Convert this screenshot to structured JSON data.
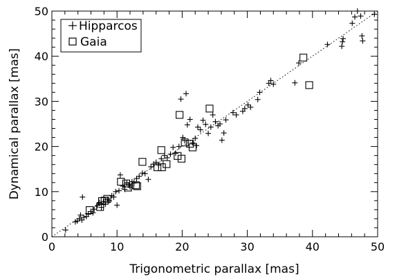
{
  "chart_data": {
    "type": "scatter",
    "title": "",
    "xlabel": "Trigonometric parallax [mas]",
    "ylabel": "Dynamical parallax [mas]",
    "xlim": [
      0,
      50
    ],
    "ylim": [
      0,
      50
    ],
    "x_ticks": [
      "0",
      "10",
      "20",
      "30",
      "40",
      "50"
    ],
    "y_ticks": [
      "0",
      "10",
      "20",
      "30",
      "40",
      "50"
    ],
    "grid": false,
    "legend_position": "top-left",
    "reference_line": {
      "style": "dotted",
      "slope": 1,
      "intercept": 0
    },
    "series": [
      {
        "name": "Hipparcos",
        "marker": "plus",
        "points": [
          [
            2.1,
            1.5
          ],
          [
            3.6,
            3.3
          ],
          [
            3.9,
            3.5
          ],
          [
            4.2,
            4.0
          ],
          [
            4.4,
            4.8
          ],
          [
            4.6,
            3.7
          ],
          [
            4.9,
            4.3
          ],
          [
            4.7,
            8.8
          ],
          [
            5.3,
            4.5
          ],
          [
            5.6,
            5.0
          ],
          [
            6.0,
            5.6
          ],
          [
            6.3,
            5.3
          ],
          [
            6.5,
            6.1
          ],
          [
            7.0,
            6.9
          ],
          [
            7.3,
            7.6
          ],
          [
            7.6,
            6.5
          ],
          [
            7.9,
            7.8
          ],
          [
            8.2,
            7.2
          ],
          [
            8.5,
            8.3
          ],
          [
            8.8,
            8.0
          ],
          [
            9.2,
            9.1
          ],
          [
            9.5,
            8.8
          ],
          [
            9.8,
            10.0
          ],
          [
            10.0,
            7.0
          ],
          [
            10.3,
            10.2
          ],
          [
            10.5,
            13.7
          ],
          [
            10.9,
            11.2
          ],
          [
            11.2,
            10.5
          ],
          [
            11.5,
            12.0
          ],
          [
            11.8,
            11.4
          ],
          [
            12.0,
            11.0
          ],
          [
            12.3,
            12.2
          ],
          [
            12.6,
            11.9
          ],
          [
            13.0,
            12.9
          ],
          [
            13.4,
            13.4
          ],
          [
            13.9,
            14.1
          ],
          [
            14.3,
            14.0
          ],
          [
            14.8,
            12.7
          ],
          [
            15.2,
            15.5
          ],
          [
            15.6,
            16.1
          ],
          [
            16.0,
            16.5
          ],
          [
            16.4,
            15.9
          ],
          [
            16.8,
            17.3
          ],
          [
            17.3,
            18.0
          ],
          [
            17.7,
            17.5
          ],
          [
            18.2,
            18.3
          ],
          [
            18.6,
            19.8
          ],
          [
            19.0,
            18.5
          ],
          [
            19.5,
            20.0
          ],
          [
            19.8,
            30.5
          ],
          [
            20.1,
            22.0
          ],
          [
            20.4,
            21.3
          ],
          [
            20.6,
            31.7
          ],
          [
            20.8,
            24.8
          ],
          [
            21.2,
            26.0
          ],
          [
            21.6,
            20.8
          ],
          [
            22.0,
            21.8
          ],
          [
            22.2,
            20.2
          ],
          [
            22.4,
            24.3
          ],
          [
            22.8,
            23.7
          ],
          [
            23.2,
            25.8
          ],
          [
            23.6,
            24.9
          ],
          [
            24.0,
            22.9
          ],
          [
            24.4,
            24.3
          ],
          [
            24.7,
            27.0
          ],
          [
            25.1,
            25.5
          ],
          [
            25.5,
            24.6
          ],
          [
            25.8,
            25.0
          ],
          [
            26.1,
            21.4
          ],
          [
            26.4,
            23.0
          ],
          [
            26.7,
            25.9
          ],
          [
            27.8,
            27.5
          ],
          [
            28.3,
            27.0
          ],
          [
            29.3,
            27.8
          ],
          [
            29.6,
            28.4
          ],
          [
            30.1,
            29.2
          ],
          [
            30.5,
            28.7
          ],
          [
            31.6,
            30.4
          ],
          [
            31.9,
            32.0
          ],
          [
            33.3,
            34.0
          ],
          [
            33.6,
            34.6
          ],
          [
            34.0,
            33.8
          ],
          [
            37.3,
            34.1
          ],
          [
            37.9,
            38.5
          ],
          [
            42.3,
            42.6
          ],
          [
            44.5,
            42.2
          ],
          [
            44.6,
            43.2
          ],
          [
            44.7,
            43.9
          ],
          [
            46.1,
            47.3
          ],
          [
            46.5,
            48.7
          ],
          [
            46.9,
            50.0
          ],
          [
            47.4,
            48.9
          ],
          [
            47.6,
            44.5
          ],
          [
            47.7,
            43.4
          ],
          [
            49.5,
            49.3
          ]
        ]
      },
      {
        "name": "Gaia",
        "marker": "square",
        "points": [
          [
            5.8,
            5.9
          ],
          [
            7.4,
            6.6
          ],
          [
            7.7,
            7.9
          ],
          [
            8.1,
            8.0
          ],
          [
            8.5,
            8.4
          ],
          [
            10.6,
            12.2
          ],
          [
            11.4,
            11.8
          ],
          [
            11.7,
            10.9
          ],
          [
            12.9,
            11.4
          ],
          [
            13.1,
            11.2
          ],
          [
            13.9,
            16.6
          ],
          [
            16.2,
            15.4
          ],
          [
            16.8,
            19.2
          ],
          [
            16.9,
            15.4
          ],
          [
            17.6,
            16.1
          ],
          [
            19.3,
            17.9
          ],
          [
            19.6,
            27.0
          ],
          [
            19.9,
            17.3
          ],
          [
            20.4,
            20.9
          ],
          [
            21.2,
            20.6
          ],
          [
            21.6,
            19.8
          ],
          [
            24.2,
            28.4
          ],
          [
            38.6,
            39.7
          ],
          [
            39.5,
            33.6
          ]
        ]
      }
    ]
  }
}
